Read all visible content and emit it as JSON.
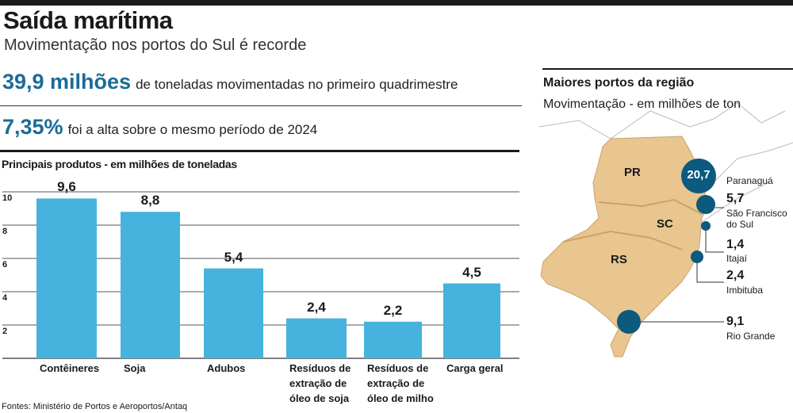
{
  "header": {
    "title": "Saída marítima",
    "subtitle": "Movimentação nos portos do Sul é recorde"
  },
  "stats": [
    {
      "value": "39,9 milhões",
      "text": "de toneladas movimentadas no primeiro quadrimestre"
    },
    {
      "value": "7,35%",
      "text": "foi a alta sobre o mesmo período de 2024"
    }
  ],
  "colors": {
    "bar": "#45b3de",
    "bubble": "#0c5a7e",
    "land": "#e9c58f",
    "accent": "#1b6b97"
  },
  "chart_data": {
    "type": "bar",
    "title": "Principais produtos - em milhões de toneladas",
    "categories": [
      "Contêineres",
      "Soja",
      "Adubos",
      "Resíduos de extração de óleo de soja",
      "Resíduos de extração de óleo de milho",
      "Carga geral"
    ],
    "category_lines": [
      [
        "Contêineres"
      ],
      [
        "Soja"
      ],
      [
        "Adubos"
      ],
      [
        "Resíduos de",
        "extração de",
        "óleo de soja"
      ],
      [
        "Resíduos de",
        "extração de",
        "óleo de milho"
      ],
      [
        "Carga geral"
      ]
    ],
    "values": [
      9.6,
      8.8,
      5.4,
      2.4,
      2.2,
      4.5
    ],
    "value_labels": [
      "9,6",
      "8,8",
      "5,4",
      "2,4",
      "2,2",
      "4,5"
    ],
    "yticks": [
      "2",
      "4",
      "6",
      "8",
      "10"
    ],
    "ylim": [
      0,
      10
    ],
    "grid": true
  },
  "source": "Fontes: Ministério de Portos e Aeroportos/Antaq",
  "map": {
    "title": "Maiores portos da região",
    "subtitle": "Movimentação - em milhões de ton",
    "states": [
      "PR",
      "SC",
      "RS"
    ],
    "ports": [
      {
        "name": "Paranaguá",
        "value": "20,7"
      },
      {
        "name": "São Francisco do Sul",
        "value": "5,7"
      },
      {
        "name": "Itajaí",
        "value": "1,4"
      },
      {
        "name": "Imbituba",
        "value": "2,4"
      },
      {
        "name": "Rio Grande",
        "value": "9,1"
      }
    ]
  }
}
